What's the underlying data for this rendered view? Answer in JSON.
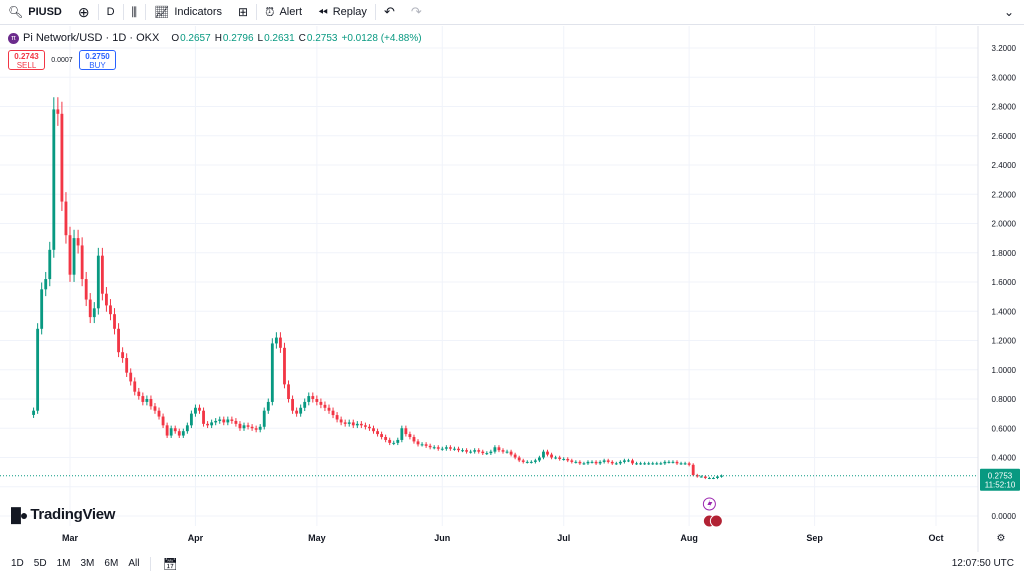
{
  "toolbar": {
    "symbol": "PIUSD",
    "interval": "D",
    "indicators_label": "Indicators",
    "alert_label": "Alert",
    "replay_label": "Replay"
  },
  "legend": {
    "title": "Pi Network/USD · 1D · OKX",
    "o_label": "O",
    "o_value": "0.2657",
    "h_label": "H",
    "h_value": "0.2796",
    "l_label": "L",
    "l_value": "0.2631",
    "c_label": "C",
    "c_value": "0.2753",
    "change": "+0.0128 (+4.88%)"
  },
  "trade": {
    "sell_price": "0.2743",
    "sell_label": "SELL",
    "spread": "0.0007",
    "buy_price": "0.2750",
    "buy_label": "BUY"
  },
  "brand": "TradingView",
  "bottom": {
    "ranges": [
      "1D",
      "5D",
      "1M",
      "3M",
      "6M",
      "All"
    ],
    "time": "12:07:50 UTC"
  },
  "colors": {
    "up": "#089981",
    "down": "#f23645",
    "grid": "#f0f3fa",
    "text": "#131722"
  },
  "chart_data": {
    "type": "candlestick",
    "title": "Pi Network/USD · 1D · OKX",
    "ylim": [
      -0.1,
      3.3
    ],
    "y_ticks": [
      "3.2000",
      "3.0000",
      "2.8000",
      "2.6000",
      "2.4000",
      "2.2000",
      "2.0000",
      "1.8000",
      "1.6000",
      "1.4000",
      "1.2000",
      "1.0000",
      "0.8000",
      "0.6000",
      "0.4000",
      "0.2000",
      "0.0000"
    ],
    "y_tick_values": [
      3.2,
      3.0,
      2.8,
      2.6,
      2.4,
      2.2,
      2.0,
      1.8,
      1.6,
      1.4,
      1.2,
      1.0,
      0.8,
      0.6,
      0.4,
      0.2,
      0.0
    ],
    "x_ticks": [
      "Mar",
      "Apr",
      "May",
      "Jun",
      "Jul",
      "Aug",
      "Sep",
      "Oct"
    ],
    "x_tick_dates": [
      "2025-03-01",
      "2025-04-01",
      "2025-05-01",
      "2025-06-01",
      "2025-07-01",
      "2025-08-01",
      "2025-09-01",
      "2025-10-01"
    ],
    "start_date": "2025-02-20",
    "last_price": "0.2753",
    "countdown": "11:52:10",
    "grid": true,
    "closes": [
      0.72,
      1.28,
      1.55,
      1.62,
      1.82,
      2.78,
      2.75,
      2.15,
      1.92,
      1.65,
      1.9,
      1.85,
      1.62,
      1.48,
      1.36,
      1.42,
      1.78,
      1.52,
      1.44,
      1.38,
      1.28,
      1.12,
      1.08,
      0.98,
      0.92,
      0.85,
      0.82,
      0.78,
      0.8,
      0.75,
      0.72,
      0.68,
      0.62,
      0.55,
      0.6,
      0.58,
      0.55,
      0.58,
      0.62,
      0.7,
      0.74,
      0.72,
      0.63,
      0.62,
      0.64,
      0.65,
      0.66,
      0.64,
      0.66,
      0.65,
      0.63,
      0.6,
      0.62,
      0.61,
      0.6,
      0.59,
      0.61,
      0.72,
      0.78,
      1.18,
      1.22,
      1.15,
      0.9,
      0.8,
      0.72,
      0.7,
      0.74,
      0.78,
      0.82,
      0.8,
      0.78,
      0.76,
      0.74,
      0.72,
      0.69,
      0.66,
      0.64,
      0.63,
      0.64,
      0.62,
      0.63,
      0.62,
      0.61,
      0.6,
      0.58,
      0.56,
      0.54,
      0.52,
      0.5,
      0.5,
      0.52,
      0.6,
      0.56,
      0.54,
      0.51,
      0.49,
      0.49,
      0.48,
      0.47,
      0.47,
      0.46,
      0.46,
      0.47,
      0.46,
      0.46,
      0.45,
      0.45,
      0.44,
      0.44,
      0.45,
      0.44,
      0.43,
      0.43,
      0.44,
      0.47,
      0.45,
      0.44,
      0.44,
      0.42,
      0.4,
      0.38,
      0.37,
      0.37,
      0.37,
      0.38,
      0.4,
      0.44,
      0.42,
      0.4,
      0.4,
      0.39,
      0.39,
      0.38,
      0.37,
      0.37,
      0.36,
      0.36,
      0.37,
      0.37,
      0.36,
      0.37,
      0.38,
      0.37,
      0.36,
      0.36,
      0.37,
      0.38,
      0.38,
      0.36,
      0.36,
      0.36,
      0.36,
      0.36,
      0.36,
      0.36,
      0.36,
      0.37,
      0.37,
      0.37,
      0.36,
      0.36,
      0.36,
      0.35,
      0.28,
      0.27,
      0.27,
      0.26,
      0.26,
      0.26,
      0.27,
      0.2753
    ]
  }
}
